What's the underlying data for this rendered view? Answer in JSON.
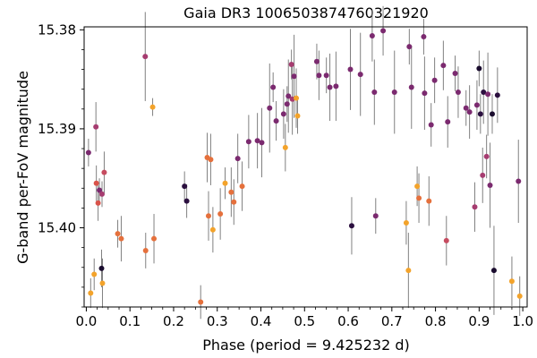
{
  "chart_data": {
    "type": "scatter",
    "title": "Gaia DR3 1006503874760321920",
    "xlabel": "Phase (period = 9.425232 d)",
    "ylabel": "G-band per-FoV magnitude",
    "xlim": [
      -0.005,
      1.01
    ],
    "ylim": [
      15.408,
      15.3797
    ],
    "y_inverted": true,
    "x_ticks": [
      "0.0",
      "0.1",
      "0.2",
      "0.3",
      "0.4",
      "0.5",
      "0.6",
      "0.7",
      "0.8",
      "0.9",
      "1.0"
    ],
    "y_ticks": [
      "15.38",
      "15.39",
      "15.40"
    ],
    "grid": false,
    "error_bar_color": "#808080",
    "points": [
      {
        "x": 0.005,
        "y": 15.3924,
        "err": 0.0014,
        "color": "#7b2a6f"
      },
      {
        "x": 0.01,
        "y": 15.4066,
        "err": 0.0015,
        "color": "#f3a32b"
      },
      {
        "x": 0.018,
        "y": 15.4047,
        "err": 0.0016,
        "color": "#f3a32b"
      },
      {
        "x": 0.022,
        "y": 15.3898,
        "err": 0.0025,
        "color": "#a63c70"
      },
      {
        "x": 0.023,
        "y": 15.3955,
        "err": 0.0018,
        "color": "#d9534a"
      },
      {
        "x": 0.027,
        "y": 15.3975,
        "err": 0.0018,
        "color": "#d9534a"
      },
      {
        "x": 0.03,
        "y": 15.3962,
        "err": 0.0012,
        "color": "#7b2a6f"
      },
      {
        "x": 0.035,
        "y": 15.4041,
        "err": 0.0019,
        "color": "#1a0c2e"
      },
      {
        "x": 0.036,
        "y": 15.3966,
        "err": 0.0013,
        "color": "#a63c70"
      },
      {
        "x": 0.037,
        "y": 15.4056,
        "err": 0.0025,
        "color": "#f3a32b"
      },
      {
        "x": 0.041,
        "y": 15.3944,
        "err": 0.0021,
        "color": "#c64c60"
      },
      {
        "x": 0.072,
        "y": 15.4006,
        "err": 0.0014,
        "color": "#e5703c"
      },
      {
        "x": 0.08,
        "y": 15.4011,
        "err": 0.0023,
        "color": "#e5703c"
      },
      {
        "x": 0.135,
        "y": 15.3827,
        "err": 0.0045,
        "color": "#a63c70"
      },
      {
        "x": 0.136,
        "y": 15.4023,
        "err": 0.0018,
        "color": "#e5703c"
      },
      {
        "x": 0.152,
        "y": 15.3878,
        "err": 0.0009,
        "color": "#f3a32b"
      },
      {
        "x": 0.155,
        "y": 15.4011,
        "err": 0.0025,
        "color": "#e5703c"
      },
      {
        "x": 0.225,
        "y": 15.3958,
        "err": 0.0015,
        "color": "#2b0f3f"
      },
      {
        "x": 0.23,
        "y": 15.3973,
        "err": 0.0017,
        "color": "#2b0f3f"
      },
      {
        "x": 0.262,
        "y": 15.4075,
        "err": 0.0017,
        "color": "#e5703c"
      },
      {
        "x": 0.277,
        "y": 15.3929,
        "err": 0.0025,
        "color": "#e5703c"
      },
      {
        "x": 0.28,
        "y": 15.3988,
        "err": 0.0025,
        "color": "#e5703c"
      },
      {
        "x": 0.285,
        "y": 15.3931,
        "err": 0.0026,
        "color": "#e5703c"
      },
      {
        "x": 0.29,
        "y": 15.4002,
        "err": 0.0023,
        "color": "#f3a32b"
      },
      {
        "x": 0.307,
        "y": 15.3986,
        "err": 0.0026,
        "color": "#e5703c"
      },
      {
        "x": 0.318,
        "y": 15.3955,
        "err": 0.0016,
        "color": "#f3a32b"
      },
      {
        "x": 0.332,
        "y": 15.3964,
        "err": 0.0025,
        "color": "#e5703c"
      },
      {
        "x": 0.338,
        "y": 15.3974,
        "err": 0.0023,
        "color": "#e5703c"
      },
      {
        "x": 0.347,
        "y": 15.393,
        "err": 0.0025,
        "color": "#7b2a6f"
      },
      {
        "x": 0.357,
        "y": 15.3958,
        "err": 0.0025,
        "color": "#e5703c"
      },
      {
        "x": 0.372,
        "y": 15.3913,
        "err": 0.0027,
        "color": "#7b2a6f"
      },
      {
        "x": 0.392,
        "y": 15.3912,
        "err": 0.0028,
        "color": "#7b2a6f"
      },
      {
        "x": 0.402,
        "y": 15.3914,
        "err": 0.0035,
        "color": "#7b2a6f"
      },
      {
        "x": 0.42,
        "y": 15.3879,
        "err": 0.0045,
        "color": "#7b2a6f"
      },
      {
        "x": 0.428,
        "y": 15.3858,
        "err": 0.0015,
        "color": "#7b2a6f"
      },
      {
        "x": 0.435,
        "y": 15.3892,
        "err": 0.002,
        "color": "#7b2a6f"
      },
      {
        "x": 0.452,
        "y": 15.3885,
        "err": 0.0025,
        "color": "#7b2a6f"
      },
      {
        "x": 0.456,
        "y": 15.3919,
        "err": 0.0024,
        "color": "#f3a32b"
      },
      {
        "x": 0.46,
        "y": 15.3875,
        "err": 0.0018,
        "color": "#7b2a6f"
      },
      {
        "x": 0.463,
        "y": 15.3867,
        "err": 0.0037,
        "color": "#7b2a6f"
      },
      {
        "x": 0.47,
        "y": 15.3835,
        "err": 0.0015,
        "color": "#a63c70"
      },
      {
        "x": 0.472,
        "y": 15.387,
        "err": 0.0036,
        "color": "#a63c70"
      },
      {
        "x": 0.476,
        "y": 15.3847,
        "err": 0.0042,
        "color": "#7b2a6f"
      },
      {
        "x": 0.481,
        "y": 15.3869,
        "err": 0.003,
        "color": "#f3a32b"
      },
      {
        "x": 0.484,
        "y": 15.3887,
        "err": 0.0018,
        "color": "#f3a32b"
      },
      {
        "x": 0.528,
        "y": 15.3832,
        "err": 0.0018,
        "color": "#7b2a6f"
      },
      {
        "x": 0.533,
        "y": 15.3846,
        "err": 0.0025,
        "color": "#7b2a6f"
      },
      {
        "x": 0.55,
        "y": 15.3846,
        "err": 0.0018,
        "color": "#7b2a6f"
      },
      {
        "x": 0.558,
        "y": 15.3858,
        "err": 0.0034,
        "color": "#7b2a6f"
      },
      {
        "x": 0.572,
        "y": 15.3857,
        "err": 0.0035,
        "color": "#7b2a6f"
      },
      {
        "x": 0.605,
        "y": 15.384,
        "err": 0.0041,
        "color": "#7b2a6f"
      },
      {
        "x": 0.608,
        "y": 15.3998,
        "err": 0.0029,
        "color": "#2b0f3f"
      },
      {
        "x": 0.628,
        "y": 15.3845,
        "err": 0.0042,
        "color": "#7b2a6f"
      },
      {
        "x": 0.655,
        "y": 15.3806,
        "err": 0.0026,
        "color": "#7b2a6f"
      },
      {
        "x": 0.66,
        "y": 15.3863,
        "err": 0.0033,
        "color": "#7b2a6f"
      },
      {
        "x": 0.663,
        "y": 15.3988,
        "err": 0.0018,
        "color": "#7b2a6f"
      },
      {
        "x": 0.68,
        "y": 15.3801,
        "err": 0.0025,
        "color": "#7b2a6f"
      },
      {
        "x": 0.706,
        "y": 15.3863,
        "err": 0.0042,
        "color": "#7b2a6f"
      },
      {
        "x": 0.733,
        "y": 15.3995,
        "err": 0.0022,
        "color": "#f3a32b"
      },
      {
        "x": 0.738,
        "y": 15.4043,
        "err": 0.0038,
        "color": "#f3a32b"
      },
      {
        "x": 0.74,
        "y": 15.3817,
        "err": 0.0018,
        "color": "#7b2a6f"
      },
      {
        "x": 0.745,
        "y": 15.3858,
        "err": 0.0042,
        "color": "#7b2a6f"
      },
      {
        "x": 0.758,
        "y": 15.3958,
        "err": 0.002,
        "color": "#f3a32b"
      },
      {
        "x": 0.762,
        "y": 15.397,
        "err": 0.0025,
        "color": "#e5703c"
      },
      {
        "x": 0.773,
        "y": 15.3807,
        "err": 0.0018,
        "color": "#7b2a6f"
      },
      {
        "x": 0.775,
        "y": 15.3864,
        "err": 0.0037,
        "color": "#7b2a6f"
      },
      {
        "x": 0.785,
        "y": 15.3973,
        "err": 0.0025,
        "color": "#e5703c"
      },
      {
        "x": 0.79,
        "y": 15.3896,
        "err": 0.0022,
        "color": "#7b2a6f"
      },
      {
        "x": 0.798,
        "y": 15.3851,
        "err": 0.0023,
        "color": "#7b2a6f"
      },
      {
        "x": 0.818,
        "y": 15.3836,
        "err": 0.0025,
        "color": "#7b2a6f"
      },
      {
        "x": 0.825,
        "y": 15.4013,
        "err": 0.0025,
        "color": "#c64c60"
      },
      {
        "x": 0.828,
        "y": 15.3893,
        "err": 0.0026,
        "color": "#7b2a6f"
      },
      {
        "x": 0.845,
        "y": 15.3844,
        "err": 0.0018,
        "color": "#7b2a6f"
      },
      {
        "x": 0.852,
        "y": 15.3863,
        "err": 0.0026,
        "color": "#7b2a6f"
      },
      {
        "x": 0.87,
        "y": 15.3879,
        "err": 0.0018,
        "color": "#7b2a6f"
      },
      {
        "x": 0.878,
        "y": 15.3883,
        "err": 0.0027,
        "color": "#7b2a6f"
      },
      {
        "x": 0.89,
        "y": 15.3979,
        "err": 0.0025,
        "color": "#a63c70"
      },
      {
        "x": 0.895,
        "y": 15.3876,
        "err": 0.0025,
        "color": "#7b2a6f"
      },
      {
        "x": 0.9,
        "y": 15.3839,
        "err": 0.0018,
        "color": "#1a0c2e"
      },
      {
        "x": 0.903,
        "y": 15.3885,
        "err": 0.002,
        "color": "#2b0f3f"
      },
      {
        "x": 0.908,
        "y": 15.3947,
        "err": 0.0028,
        "color": "#a63c70"
      },
      {
        "x": 0.91,
        "y": 15.3863,
        "err": 0.0032,
        "color": "#2b0f3f"
      },
      {
        "x": 0.917,
        "y": 15.3928,
        "err": 0.0022,
        "color": "#a63c70"
      },
      {
        "x": 0.92,
        "y": 15.3865,
        "err": 0.0042,
        "color": "#7b2a6f"
      },
      {
        "x": 0.925,
        "y": 15.3957,
        "err": 0.0043,
        "color": "#7b2a6f"
      },
      {
        "x": 0.93,
        "y": 15.3885,
        "err": 0.002,
        "color": "#1a0c2e"
      },
      {
        "x": 0.934,
        "y": 15.4043,
        "err": 0.0045,
        "color": "#1a0c2e"
      },
      {
        "x": 0.942,
        "y": 15.3866,
        "err": 0.0028,
        "color": "#2b0f3f"
      },
      {
        "x": 0.975,
        "y": 15.4054,
        "err": 0.0025,
        "color": "#f3a32b"
      },
      {
        "x": 0.99,
        "y": 15.3953,
        "err": 0.0042,
        "color": "#7b2a6f"
      },
      {
        "x": 0.993,
        "y": 15.4069,
        "err": 0.002,
        "color": "#f3a32b"
      }
    ]
  }
}
